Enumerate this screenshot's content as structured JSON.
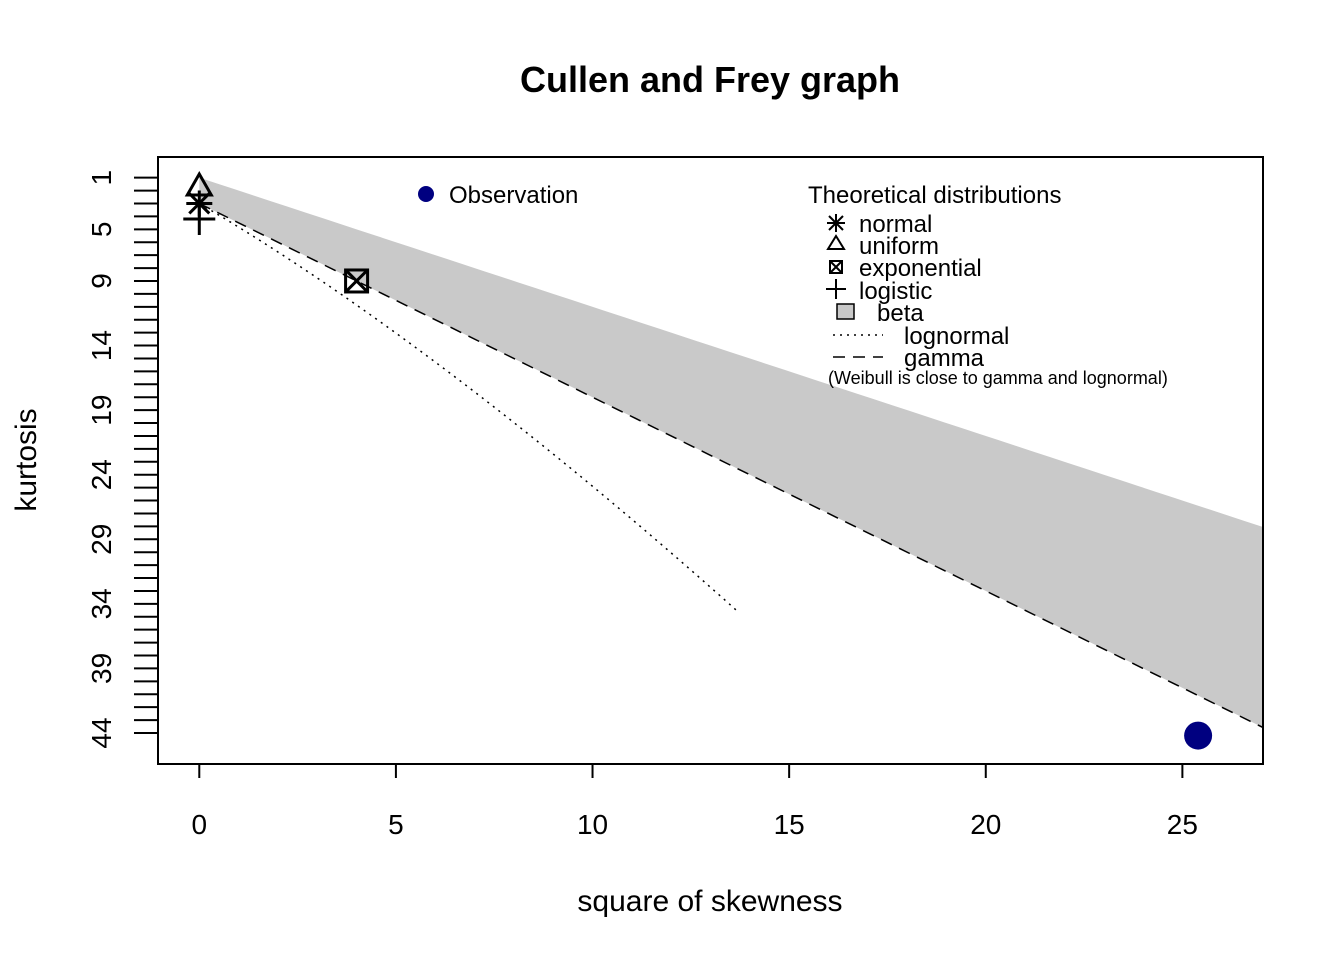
{
  "chart_data": {
    "type": "scatter",
    "title": "Cullen and Frey graph",
    "xlabel": "square of skewness",
    "ylabel": "kurtosis",
    "xlim": [
      -1.05,
      27.05
    ],
    "ylim": [
      46.4,
      -0.6
    ],
    "y_axis_reversed": true,
    "x_ticks": [
      0,
      5,
      10,
      15,
      20,
      25
    ],
    "y_ticks": [
      1,
      5,
      9,
      14,
      19,
      24,
      29,
      34,
      39,
      44
    ],
    "y_minor_tick_step": 1,
    "grid": false,
    "observation": {
      "name": "Observation",
      "x": 25.4,
      "y": 44.2,
      "color": "#000080"
    },
    "theoretical": [
      {
        "name": "normal",
        "x": 0,
        "y": 3,
        "marker": "asterisk"
      },
      {
        "name": "uniform",
        "x": 0,
        "y": 1.8,
        "marker": "triangle"
      },
      {
        "name": "exponential",
        "x": 4,
        "y": 9,
        "marker": "boxed-x"
      },
      {
        "name": "logistic",
        "x": 0,
        "y": 4.2,
        "marker": "plus"
      }
    ],
    "beta_region_color": "#c9c9c9",
    "gamma_line": {
      "name": "gamma",
      "style": "dashed",
      "relation": "y = 3 + 1.5 x"
    },
    "lognormal_line": {
      "name": "lognormal",
      "style": "dotted"
    },
    "legend": {
      "observation_label": "Observation",
      "theoretical_title": "Theoretical distributions",
      "items": [
        "normal",
        "uniform",
        "exponential",
        "logistic",
        "beta",
        "lognormal",
        "gamma"
      ],
      "note": "(Weibull is close to gamma and lognormal)",
      "position": "top-right"
    }
  }
}
